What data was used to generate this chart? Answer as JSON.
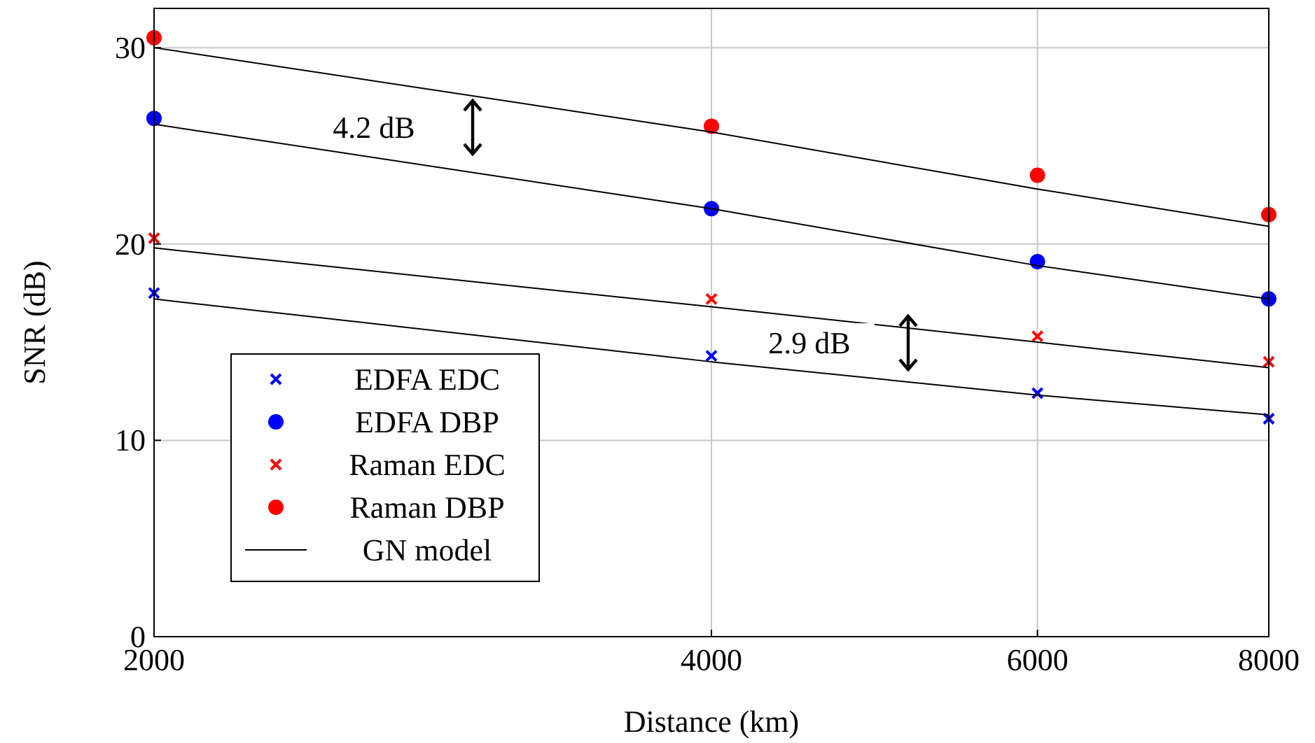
{
  "chart_data": {
    "type": "scatter",
    "xlabel": "Distance (km)",
    "ylabel": "SNR (dB)",
    "x": [
      2000,
      4000,
      6000,
      8000
    ],
    "log": "x",
    "xlim": [
      2000,
      8000
    ],
    "xticks": [
      2000,
      4000,
      6000,
      8000
    ],
    "ylim": [
      0,
      32
    ],
    "yticks": [
      0,
      10,
      20,
      30
    ],
    "grid": true,
    "legend": "bottom left",
    "series": [
      {
        "name": "EDFA EDC",
        "marker": "cross",
        "color": "#0000ff",
        "values": [
          17.5,
          14.3,
          12.4,
          11.1
        ]
      },
      {
        "name": "EDFA DBP",
        "marker": "circle",
        "color": "#0000ff",
        "values": [
          26.4,
          21.8,
          19.1,
          17.2
        ]
      },
      {
        "name": "Raman EDC",
        "marker": "cross",
        "color": "#ff0000",
        "values": [
          20.3,
          17.2,
          15.3,
          14.0
        ]
      },
      {
        "name": "Raman DBP",
        "marker": "circle",
        "color": "#ff0000",
        "values": [
          30.5,
          26.0,
          23.5,
          21.5
        ]
      },
      {
        "name": "GN model",
        "type": "line",
        "marker": "none",
        "color": "#000000",
        "values": [
          30.0,
          25.7,
          22.8,
          20.9
        ]
      },
      {
        "type": "line",
        "marker": "none",
        "color": "#000000",
        "values": [
          26.1,
          21.8,
          18.9,
          17.2
        ]
      },
      {
        "type": "line",
        "marker": "none",
        "color": "#000000",
        "values": [
          19.8,
          16.8,
          15.0,
          13.7
        ]
      },
      {
        "type": "line",
        "marker": "none",
        "color": "#000000",
        "values": [
          17.2,
          14.0,
          12.3,
          11.3
        ]
      }
    ],
    "annotations": [
      "4.2 dB",
      "2.9 dB"
    ]
  }
}
